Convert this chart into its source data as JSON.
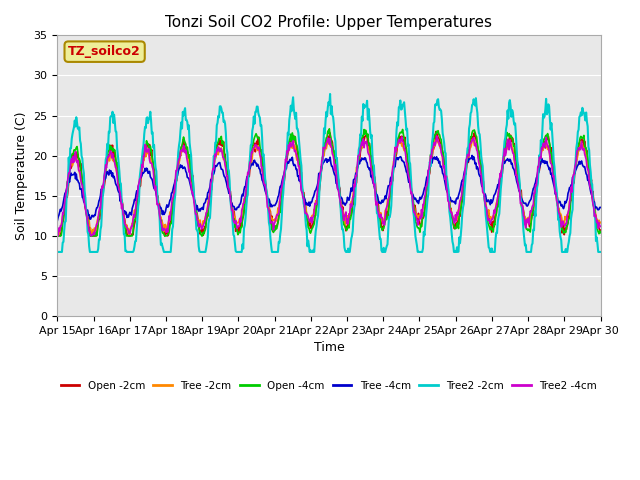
{
  "title": "Tonzi Soil CO2 Profile: Upper Temperatures",
  "xlabel": "Time",
  "ylabel": "Soil Temperature (C)",
  "ylim": [
    0,
    35
  ],
  "yticks": [
    0,
    5,
    10,
    15,
    20,
    25,
    30,
    35
  ],
  "plot_bg_color": "#e8e8e8",
  "fig_bg_color": "#ffffff",
  "legend_label": "TZ_soilco2",
  "series": [
    {
      "label": "Open -2cm",
      "color": "#cc0000",
      "lw": 1.2
    },
    {
      "label": "Tree -2cm",
      "color": "#ff8800",
      "lw": 1.2
    },
    {
      "label": "Open -4cm",
      "color": "#00cc00",
      "lw": 1.2
    },
    {
      "label": "Tree -4cm",
      "color": "#0000cc",
      "lw": 1.2
    },
    {
      "label": "Tree2 -2cm",
      "color": "#00cccc",
      "lw": 1.5
    },
    {
      "label": "Tree2 -4cm",
      "color": "#cc00cc",
      "lw": 1.2
    }
  ],
  "x_tick_labels": [
    "Apr 15",
    "Apr 16",
    "Apr 17",
    "Apr 18",
    "Apr 19",
    "Apr 20",
    "Apr 21",
    "Apr 22",
    "Apr 23",
    "Apr 24",
    "Apr 25",
    "Apr 26",
    "Apr 27",
    "Apr 28",
    "Apr 29",
    "Apr 30"
  ],
  "n_days": 15,
  "pts_per_day": 48
}
